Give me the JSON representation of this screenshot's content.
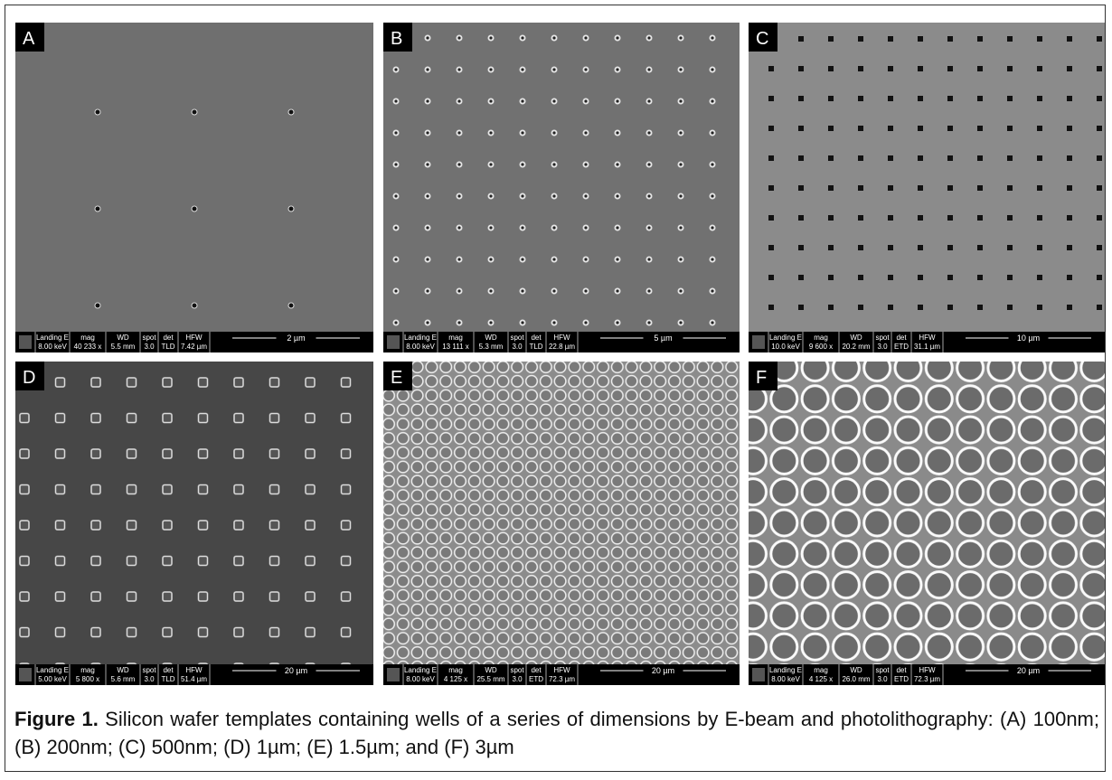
{
  "figure": {
    "info_headers": [
      "Landing E",
      "mag",
      "WD",
      "spot",
      "det",
      "HFW"
    ],
    "panels": [
      {
        "label": "A",
        "info": [
          "8.00 keV",
          "40 233 x",
          "5.5 mm",
          "3.0",
          "TLD",
          "7.42 µm"
        ],
        "scale": "2 µm"
      },
      {
        "label": "B",
        "info": [
          "8.00 keV",
          "13 111 x",
          "5.3 mm",
          "3.0",
          "TLD",
          "22.8 µm"
        ],
        "scale": "5 µm"
      },
      {
        "label": "C",
        "info": [
          "10.0 keV",
          "9 600 x",
          "20.2 mm",
          "3.0",
          "ETD",
          "31.1 µm"
        ],
        "scale": "10 µm"
      },
      {
        "label": "D",
        "info": [
          "5.00 keV",
          "5 800 x",
          "5.6 mm",
          "3.0",
          "TLD",
          "51.4 µm"
        ],
        "scale": "20 µm"
      },
      {
        "label": "E",
        "info": [
          "8.00 keV",
          "4 125 x",
          "25.5 mm",
          "3.0",
          "ETD",
          "72.3 µm"
        ],
        "scale": "20 µm"
      },
      {
        "label": "F",
        "info": [
          "8.00 keV",
          "4 125 x",
          "26.0 mm",
          "3.0",
          "ETD",
          "72.3 µm"
        ],
        "scale": "20 µm"
      }
    ]
  },
  "caption": {
    "label": "Figure 1.",
    "text": "Silicon wafer templates containing wells of a series of dimensions by E-beam and photolithography: (A) 100nm; (B) 200nm; (C) 500nm; (D) 1µm; (E) 1.5µm; and (F) 3µm"
  }
}
